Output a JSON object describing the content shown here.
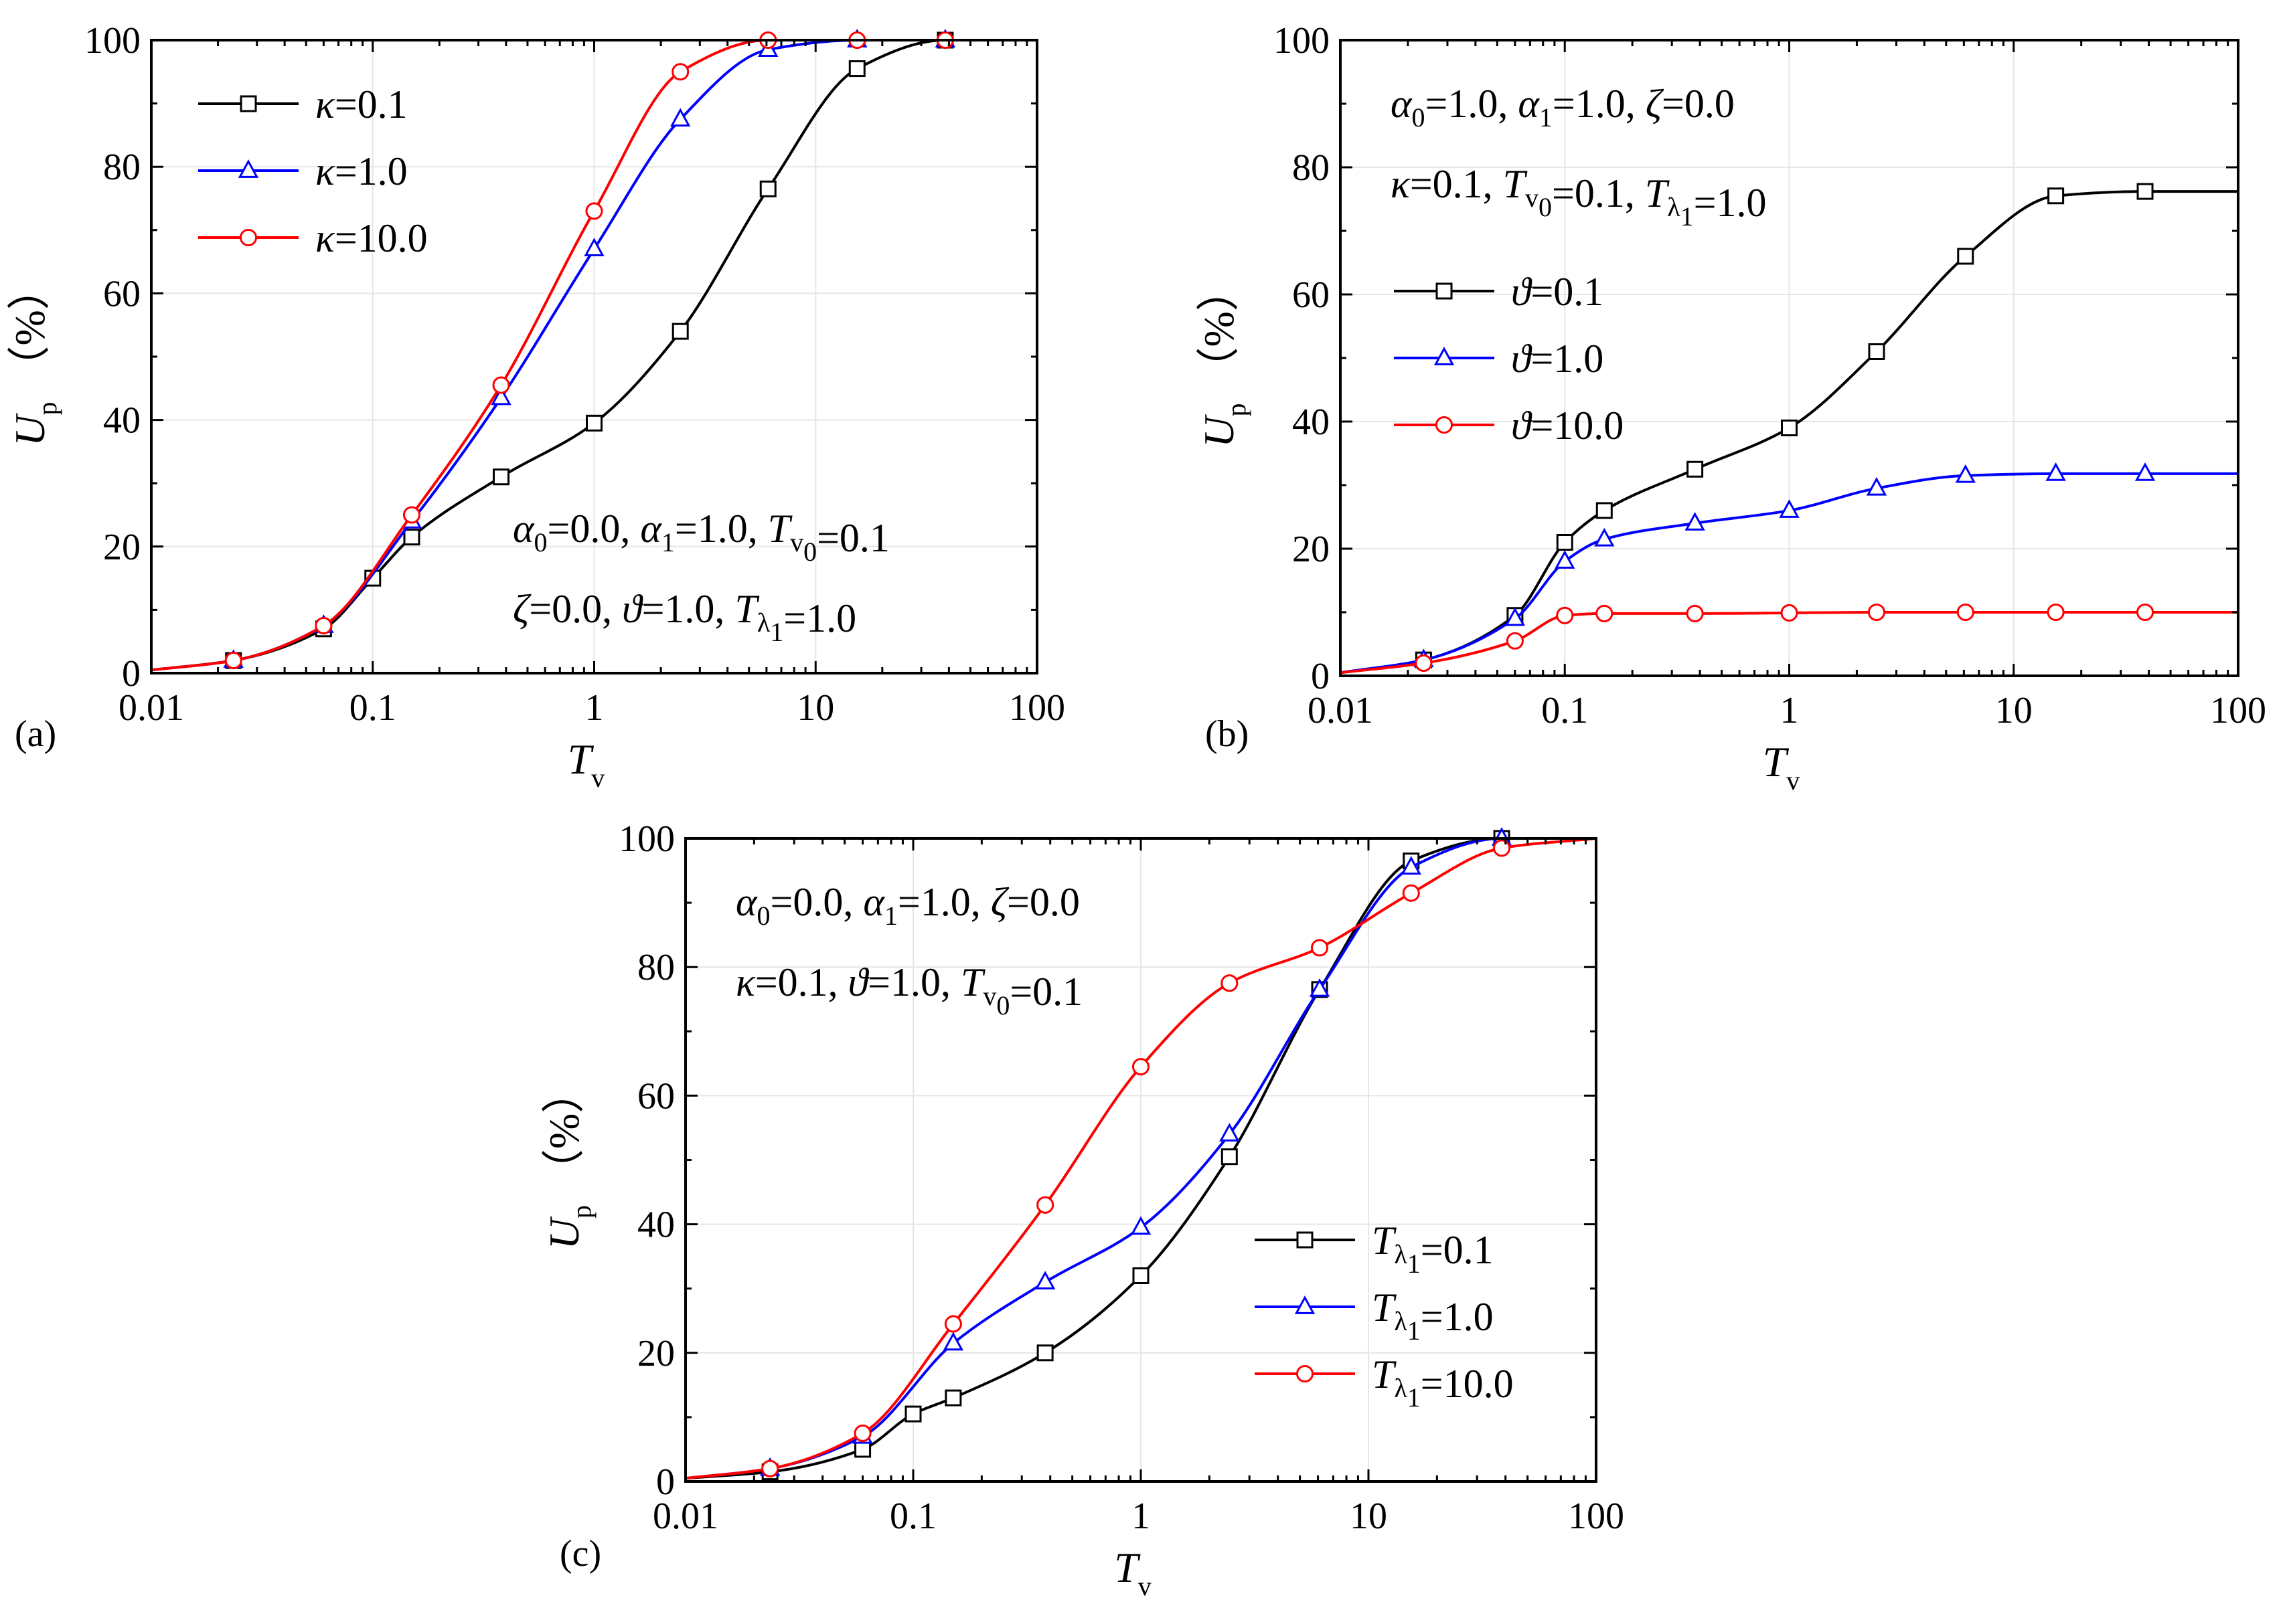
{
  "chart_data": [
    {
      "id": "a",
      "type": "line",
      "panel_label": "(a)",
      "xscale": "log",
      "xlim": [
        0.01,
        100
      ],
      "ylim": [
        0,
        100
      ],
      "xticks": [
        0.01,
        0.1,
        1,
        10,
        100
      ],
      "xtick_labels": [
        "0.01",
        "0.1",
        "1",
        "10",
        "100"
      ],
      "yticks": [
        0,
        20,
        40,
        60,
        80,
        100
      ],
      "ytick_labels": [
        "0",
        "20",
        "40",
        "60",
        "80",
        "100"
      ],
      "xlabel": {
        "main": "T",
        "sub": "v"
      },
      "ylabel": {
        "main": "U",
        "sub": "p",
        "unit": "（%）"
      },
      "legend_position": "top-left",
      "annotations": [
        "α₀=0.0,   α₁=1.0,  Tᵥ₀=0.1",
        "ζ=0.0,    ϑ=1.0,   Tλ₁=1.0"
      ],
      "series": [
        {
          "name": "κ=0.1",
          "color": "#000000",
          "marker": "square",
          "x": [
            0.01,
            0.0235,
            0.06,
            0.1,
            0.15,
            0.38,
            1,
            2.45,
            6.1,
            15.4,
            38.5,
            100
          ],
          "y": [
            0.5,
            2,
            7,
            15,
            21.5,
            31,
            39.5,
            54,
            76.5,
            95.5,
            100,
            100
          ]
        },
        {
          "name": "κ=1.0",
          "color": "#0000ff",
          "marker": "triangle",
          "x": [
            0.01,
            0.0235,
            0.06,
            0.15,
            0.38,
            1,
            2.45,
            6.1,
            15.4,
            38.5,
            100
          ],
          "y": [
            0.5,
            2,
            7.5,
            24,
            43.5,
            67,
            87.5,
            98.5,
            100,
            100,
            100
          ]
        },
        {
          "name": "κ=10.0",
          "color": "#ff0000",
          "marker": "circle",
          "x": [
            0.01,
            0.0235,
            0.06,
            0.15,
            0.38,
            1,
            2.45,
            6.1,
            15.4,
            38.5,
            100
          ],
          "y": [
            0.5,
            2,
            7.5,
            25,
            45.5,
            73,
            95,
            100,
            100,
            100,
            100
          ]
        }
      ]
    },
    {
      "id": "b",
      "type": "line",
      "panel_label": "(b)",
      "xscale": "log",
      "xlim": [
        0.01,
        100
      ],
      "ylim": [
        0,
        100
      ],
      "xticks": [
        0.01,
        0.1,
        1,
        10,
        100
      ],
      "xtick_labels": [
        "0.01",
        "0.1",
        "1",
        "10",
        "100"
      ],
      "yticks": [
        0,
        20,
        40,
        60,
        80,
        100
      ],
      "ytick_labels": [
        "0",
        "20",
        "40",
        "60",
        "80",
        "100"
      ],
      "xlabel": {
        "main": "T",
        "sub": "v"
      },
      "ylabel": {
        "main": "U",
        "sub": "p",
        "unit": "（%）"
      },
      "legend_position": "middle-left",
      "annotations": [
        "α₀=1.0,   α₁=1.0,   ζ=0.0",
        "κ=0.1,    Tᵥ₀=0.1,   Tλ₁=1.0"
      ],
      "series": [
        {
          "name": "ϑ=0.1",
          "color": "#000000",
          "marker": "square",
          "x": [
            0.01,
            0.0235,
            0.06,
            0.1,
            0.15,
            0.38,
            1,
            2.45,
            6.1,
            15.4,
            38.5,
            100
          ],
          "y": [
            0.5,
            2.5,
            9.5,
            21,
            26,
            32.5,
            39,
            51,
            66,
            75.5,
            76.2,
            76.2
          ]
        },
        {
          "name": "ϑ=1.0",
          "color": "#0000ff",
          "marker": "triangle",
          "x": [
            0.01,
            0.0235,
            0.06,
            0.1,
            0.15,
            0.38,
            1,
            2.45,
            6.1,
            15.4,
            38.5,
            100
          ],
          "y": [
            0.5,
            2.5,
            9,
            18,
            21.5,
            24,
            26,
            29.5,
            31.5,
            31.8,
            31.8,
            31.8
          ]
        },
        {
          "name": "ϑ=10.0",
          "color": "#ff0000",
          "marker": "circle",
          "x": [
            0.01,
            0.0235,
            0.06,
            0.1,
            0.15,
            0.38,
            1,
            2.45,
            6.1,
            15.4,
            38.5,
            100
          ],
          "y": [
            0.5,
            2,
            5.5,
            9.5,
            9.8,
            9.8,
            9.9,
            10,
            10,
            10,
            10,
            10
          ]
        }
      ]
    },
    {
      "id": "c",
      "type": "line",
      "panel_label": "(c)",
      "xscale": "log",
      "xlim": [
        0.01,
        100
      ],
      "ylim": [
        0,
        100
      ],
      "xticks": [
        0.01,
        0.1,
        1,
        10,
        100
      ],
      "xtick_labels": [
        "0.01",
        "0.1",
        "1",
        "10",
        "100"
      ],
      "yticks": [
        0,
        20,
        40,
        60,
        80,
        100
      ],
      "ytick_labels": [
        "0",
        "20",
        "40",
        "60",
        "80",
        "100"
      ],
      "xlabel": {
        "main": "T",
        "sub": "v"
      },
      "ylabel": {
        "main": "U",
        "sub": "p",
        "unit": "（%）"
      },
      "legend_position": "bottom-right",
      "annotations": [
        "α₀=0.0,  α₁=1.0, ζ=0.0",
        "κ=0.1,    ϑ=1.0,    Tᵥ₀=0.1"
      ],
      "series": [
        {
          "name": "Tλ₁=0.1",
          "color": "#000000",
          "marker": "square",
          "x": [
            0.01,
            0.0235,
            0.06,
            0.1,
            0.15,
            0.38,
            1,
            2.45,
            6.1,
            15.4,
            38.5,
            100
          ],
          "y": [
            0.5,
            1.5,
            5,
            10.5,
            13,
            20,
            32,
            50.5,
            76.5,
            96.5,
            100,
            100
          ]
        },
        {
          "name": "Tλ₁=1.0",
          "color": "#0000ff",
          "marker": "triangle",
          "x": [
            0.01,
            0.0235,
            0.06,
            0.15,
            0.38,
            1,
            2.45,
            6.1,
            15.4,
            38.5,
            100
          ],
          "y": [
            0.5,
            2,
            7,
            21.5,
            31,
            39.5,
            54,
            76.5,
            95.5,
            100,
            100
          ]
        },
        {
          "name": "Tλ₁=10.0",
          "color": "#ff0000",
          "marker": "circle",
          "x": [
            0.01,
            0.0235,
            0.06,
            0.15,
            0.38,
            1,
            2.45,
            6.1,
            15.4,
            38.5,
            100
          ],
          "y": [
            0.5,
            2,
            7.5,
            24.5,
            43,
            64.5,
            77.5,
            83,
            91.5,
            98.5,
            100
          ]
        }
      ]
    }
  ]
}
